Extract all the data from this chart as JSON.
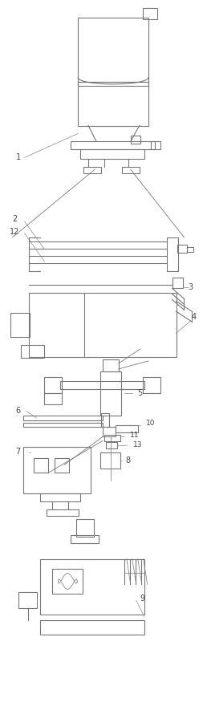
{
  "bg_color": "#ffffff",
  "lc": "#777777",
  "lc2": "#999999",
  "lw": 0.8,
  "lw_thin": 0.5
}
